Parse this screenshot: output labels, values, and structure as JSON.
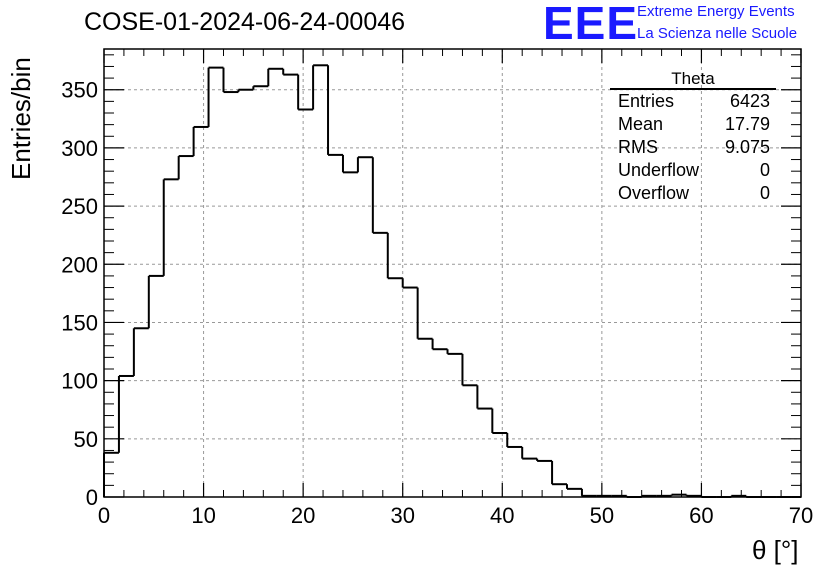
{
  "chart_data": {
    "type": "bar",
    "title": "COSE-01-2024-06-24-00046",
    "xlabel": "θ [°]",
    "ylabel": "Entries/bin",
    "xlim": [
      0,
      70
    ],
    "ylim": [
      0,
      385
    ],
    "x_ticks": [
      "0",
      "10",
      "20",
      "30",
      "40",
      "50",
      "60",
      "70"
    ],
    "y_ticks": [
      "0",
      "50",
      "100",
      "150",
      "200",
      "250",
      "300",
      "350"
    ],
    "grid": true,
    "bin_width": 1.5,
    "bin_start": 0,
    "values": [
      38,
      104,
      145,
      190,
      273,
      293,
      318,
      369,
      348,
      350,
      353,
      368,
      363,
      333,
      371,
      294,
      279,
      292,
      227,
      188,
      180,
      136,
      127,
      123,
      96,
      76,
      55,
      43,
      33,
      31,
      11,
      7,
      1,
      1,
      1,
      0,
      1,
      1,
      2,
      1,
      0,
      0,
      1,
      0,
      0,
      0,
      0
    ]
  },
  "stats_box": {
    "title": "Theta",
    "rows": [
      {
        "label": "Entries",
        "value": "6423"
      },
      {
        "label": "Mean",
        "value": "17.79"
      },
      {
        "label": "RMS",
        "value": "9.075"
      },
      {
        "label": "Underflow",
        "value": "0"
      },
      {
        "label": "Overflow",
        "value": "0"
      }
    ]
  },
  "logo": {
    "mark": "EEE",
    "line1": "Extreme Energy Events",
    "line2": "La Scienza nelle Scuole",
    "color": "#1a1aff"
  }
}
